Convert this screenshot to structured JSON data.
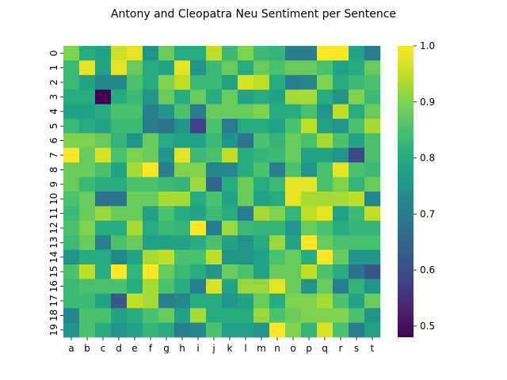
{
  "chart_data": {
    "type": "heatmap",
    "title": "Antony and Cleopatra Neu Sentiment per Sentence",
    "xlabel": "",
    "ylabel": "",
    "x_categories": [
      "a",
      "b",
      "c",
      "d",
      "e",
      "f",
      "g",
      "h",
      "i",
      "j",
      "k",
      "l",
      "m",
      "n",
      "o",
      "p",
      "q",
      "r",
      "s",
      "t"
    ],
    "y_categories": [
      "0",
      "1",
      "2",
      "3",
      "4",
      "5",
      "6",
      "7",
      "8",
      "9",
      "10",
      "11",
      "12",
      "13",
      "14",
      "15",
      "16",
      "17",
      "18",
      "19"
    ],
    "colorscale": "viridis",
    "vmin": 0.48,
    "vmax": 1.0,
    "colorbar_ticks": [
      0.5,
      0.6,
      0.7,
      0.8,
      0.9,
      1.0
    ],
    "colorbar_tick_labels": [
      "0.5",
      "0.6",
      "0.7",
      "0.8",
      "0.9",
      "1.0"
    ],
    "values": [
      [
        0.9,
        0.8,
        0.78,
        0.96,
        0.98,
        0.75,
        0.88,
        0.8,
        0.8,
        0.95,
        0.83,
        0.9,
        0.83,
        0.82,
        0.7,
        0.7,
        1.0,
        1.0,
        0.78,
        0.7
      ],
      [
        0.83,
        0.98,
        0.78,
        0.98,
        0.88,
        0.8,
        0.78,
        0.98,
        0.75,
        0.83,
        0.88,
        0.8,
        0.88,
        0.85,
        0.88,
        0.88,
        0.85,
        0.78,
        0.8,
        0.88
      ],
      [
        0.83,
        0.78,
        0.72,
        0.72,
        0.85,
        0.8,
        0.9,
        0.95,
        0.83,
        0.83,
        0.78,
        0.97,
        0.95,
        0.8,
        0.7,
        0.72,
        0.9,
        0.8,
        0.83,
        0.85
      ],
      [
        0.8,
        0.8,
        0.48,
        0.8,
        0.83,
        0.75,
        0.88,
        0.8,
        0.88,
        0.8,
        0.88,
        0.78,
        0.8,
        0.78,
        0.93,
        0.93,
        0.8,
        0.75,
        0.9,
        0.83
      ],
      [
        0.78,
        0.78,
        0.8,
        0.85,
        0.85,
        0.7,
        0.75,
        0.85,
        0.7,
        0.88,
        0.88,
        0.88,
        0.9,
        0.8,
        0.8,
        0.85,
        0.75,
        0.95,
        0.8,
        0.88
      ],
      [
        0.83,
        0.8,
        0.78,
        0.83,
        0.83,
        0.7,
        0.68,
        0.75,
        0.58,
        0.85,
        0.7,
        0.8,
        0.8,
        0.78,
        0.85,
        0.95,
        0.78,
        0.75,
        0.85,
        0.93
      ],
      [
        0.9,
        0.9,
        0.88,
        0.82,
        0.75,
        0.88,
        0.8,
        0.78,
        0.78,
        0.83,
        0.75,
        0.68,
        0.85,
        0.82,
        0.88,
        0.85,
        0.93,
        0.85,
        0.78,
        0.85
      ],
      [
        1.0,
        0.88,
        0.97,
        0.85,
        0.9,
        0.88,
        0.75,
        0.98,
        0.83,
        0.85,
        0.95,
        0.8,
        0.82,
        0.83,
        0.88,
        0.78,
        0.78,
        0.75,
        0.6,
        0.85
      ],
      [
        0.88,
        0.88,
        0.85,
        0.78,
        0.93,
        1.0,
        0.7,
        0.9,
        0.9,
        0.72,
        0.72,
        0.8,
        0.85,
        0.7,
        0.85,
        0.75,
        0.85,
        0.98,
        0.85,
        0.83
      ],
      [
        0.88,
        0.83,
        0.8,
        0.8,
        0.85,
        0.85,
        0.83,
        0.82,
        0.92,
        0.65,
        0.8,
        0.88,
        0.8,
        0.83,
        0.98,
        0.98,
        0.85,
        0.9,
        0.82,
        0.88
      ],
      [
        0.85,
        0.88,
        0.68,
        0.68,
        0.88,
        0.88,
        0.93,
        0.93,
        0.8,
        0.85,
        0.78,
        0.88,
        0.78,
        0.8,
        0.98,
        0.93,
        0.93,
        0.93,
        0.95,
        0.72
      ],
      [
        0.83,
        0.88,
        0.92,
        0.88,
        0.88,
        0.78,
        0.85,
        0.8,
        0.78,
        0.83,
        0.8,
        0.7,
        0.93,
        0.9,
        0.82,
        0.95,
        0.98,
        0.78,
        0.83,
        0.95
      ],
      [
        0.85,
        0.9,
        0.8,
        0.8,
        0.93,
        0.8,
        0.83,
        0.82,
        1.0,
        0.7,
        0.92,
        0.83,
        0.82,
        0.82,
        0.75,
        0.88,
        0.85,
        0.8,
        0.82,
        0.82
      ],
      [
        0.83,
        0.88,
        0.7,
        0.85,
        0.88,
        0.78,
        0.78,
        0.78,
        0.8,
        0.85,
        0.78,
        0.75,
        0.8,
        0.92,
        0.78,
        1.0,
        0.88,
        0.85,
        0.85,
        0.85
      ],
      [
        0.75,
        0.8,
        0.8,
        0.72,
        0.78,
        0.93,
        0.95,
        0.85,
        0.85,
        0.95,
        0.75,
        0.75,
        0.78,
        0.85,
        0.88,
        0.8,
        1.0,
        0.88,
        0.75,
        0.75
      ],
      [
        0.85,
        0.95,
        0.8,
        1.0,
        0.82,
        1.0,
        0.88,
        0.83,
        0.8,
        0.75,
        0.88,
        0.85,
        0.78,
        0.88,
        0.88,
        0.95,
        0.85,
        0.8,
        0.68,
        0.62
      ],
      [
        0.83,
        0.85,
        0.85,
        0.85,
        0.8,
        0.93,
        0.85,
        0.8,
        0.7,
        0.97,
        0.78,
        0.92,
        0.92,
        0.98,
        0.88,
        0.75,
        0.88,
        0.7,
        0.82,
        0.75
      ],
      [
        0.83,
        0.83,
        0.78,
        0.62,
        0.95,
        0.93,
        0.7,
        0.72,
        0.8,
        0.8,
        0.75,
        0.78,
        0.88,
        0.8,
        0.9,
        0.9,
        0.93,
        0.85,
        0.78,
        0.88
      ],
      [
        0.72,
        0.85,
        0.85,
        0.78,
        0.8,
        0.85,
        0.88,
        0.78,
        0.93,
        0.8,
        0.8,
        0.8,
        0.92,
        0.85,
        0.88,
        0.9,
        0.9,
        0.9,
        0.85,
        0.75
      ],
      [
        0.75,
        0.85,
        0.8,
        0.75,
        0.78,
        0.82,
        0.8,
        0.7,
        0.72,
        0.85,
        0.78,
        0.78,
        0.75,
        1.0,
        0.9,
        0.82,
        0.97,
        0.85,
        0.7,
        0.78
      ]
    ]
  }
}
